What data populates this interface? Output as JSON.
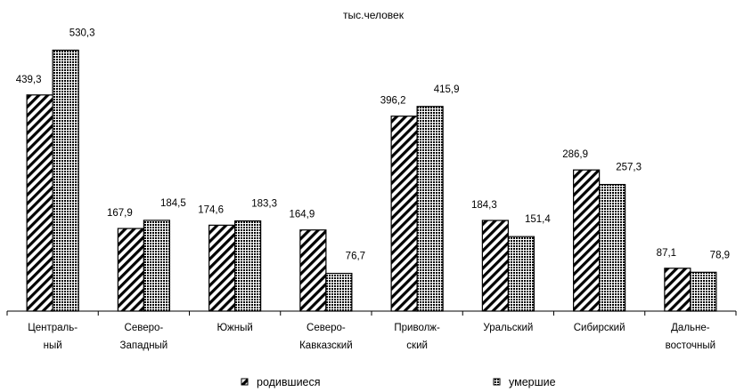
{
  "chart_data": {
    "type": "bar",
    "title": "тыс.человек",
    "xlabel": "",
    "ylabel": "",
    "ylim": [
      0,
      560
    ],
    "grid": false,
    "legend_position": "bottom",
    "categories": [
      [
        "Централь-",
        "ный"
      ],
      [
        "Северо-",
        "Западный"
      ],
      [
        "Южный"
      ],
      [
        "Северо-",
        "Кавказский"
      ],
      [
        "Приволж-",
        "ский"
      ],
      [
        "Уральский"
      ],
      [
        "Сибирский"
      ],
      [
        "Дальне-",
        "восточный"
      ]
    ],
    "series": [
      {
        "name": "родившиеся",
        "pattern": "diagonal-hatch",
        "values": [
          439.3,
          167.9,
          174.6,
          164.9,
          396.2,
          184.3,
          286.9,
          87.1
        ],
        "labels": [
          "439,3",
          "167,9",
          "174,6",
          "164,9",
          "396,2",
          "184,3",
          "286,9",
          "87,1"
        ]
      },
      {
        "name": "умершие",
        "pattern": "crosshatch",
        "values": [
          530.3,
          184.5,
          183.3,
          76.7,
          415.9,
          151.4,
          257.3,
          78.9
        ],
        "labels": [
          "530,3",
          "184,5",
          "183,3",
          "76,7",
          "415,9",
          "151,4",
          "257,3",
          "78,9"
        ]
      }
    ],
    "colors": {
      "stroke": "#000000",
      "fill_light": "#ffffff",
      "fill_dark": "#000000"
    }
  }
}
